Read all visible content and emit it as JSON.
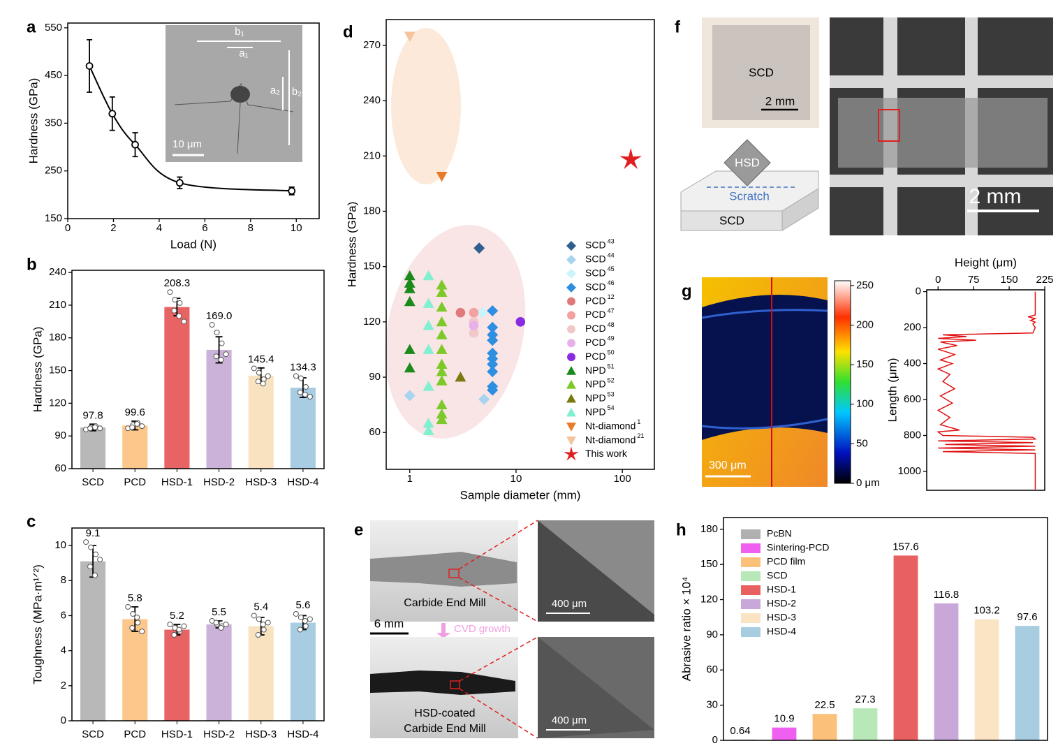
{
  "panel_labels": [
    "a",
    "b",
    "c",
    "d",
    "e",
    "f",
    "g",
    "h"
  ],
  "figures": {
    "a_inset": {
      "b1": "b₁",
      "a1": "a₁",
      "a2": "a₂",
      "b2": "b₂",
      "scale": "10 μm"
    },
    "e": {
      "top_caption": "Carbide End Mill",
      "scale": "6 mm",
      "arrow": "CVD growth",
      "bottom_caption_1": "HSD-coated",
      "bottom_caption_2": "Carbide End Mill",
      "zoom_scale_1": "400 μm",
      "zoom_scale_2": "400 μm"
    },
    "f": {
      "photo_label": "SCD",
      "photo_scale": "2 mm",
      "tip": "HSD",
      "scratch": "Scratch",
      "substrate": "SCD",
      "big_scale": "2 mm"
    },
    "g": {
      "map_scale": "300 μm"
    }
  },
  "chart_data": [
    {
      "type": "line",
      "xlabel": "Load (N)",
      "ylabel": "Hardness (GPa)",
      "x": [
        0.95,
        1.95,
        2.95,
        4.9,
        9.8
      ],
      "values": [
        470,
        370,
        305,
        225,
        208
      ],
      "errors": [
        55,
        35,
        25,
        12,
        8
      ],
      "xlim": [
        0,
        11
      ],
      "xticks": [
        0,
        2,
        4,
        6,
        8,
        10
      ],
      "ylim": [
        150,
        560
      ],
      "yticks": [
        150,
        250,
        350,
        450,
        550
      ],
      "color": "#000000"
    },
    {
      "type": "bar",
      "ylabel": "Hardness (GPa)",
      "categories": [
        "SCD",
        "PCD",
        "HSD-1",
        "HSD-2",
        "HSD-3",
        "HSD-4"
      ],
      "values": [
        97.8,
        99.6,
        208.3,
        169.0,
        145.4,
        134.3
      ],
      "value_labels": [
        "97.8",
        "99.6",
        "208.3",
        "169.0",
        "145.4",
        "134.3"
      ],
      "errors": [
        3,
        4,
        8,
        12,
        7,
        9
      ],
      "points": [
        [
          96,
          98,
          99,
          97,
          98,
          97
        ],
        [
          97,
          100,
          102,
          98,
          101,
          99
        ],
        [
          222,
          215,
          212,
          205,
          200,
          195
        ],
        [
          192,
          185,
          175,
          163,
          160,
          165
        ],
        [
          152,
          148,
          142,
          140,
          138,
          145
        ],
        [
          145,
          143,
          135,
          130,
          128,
          126
        ]
      ],
      "colors": [
        "#b8b8b8",
        "#fbc78a",
        "#e86464",
        "#cbb2d8",
        "#f8e2c0",
        "#a8cde2"
      ],
      "ylim": [
        60,
        242
      ],
      "yticks": [
        60,
        90,
        120,
        150,
        180,
        210,
        240
      ]
    },
    {
      "type": "bar",
      "ylabel": "Toughness (MPa·m¹ᐟ²)",
      "categories": [
        "SCD",
        "PCD",
        "HSD-1",
        "HSD-2",
        "HSD-3",
        "HSD-4"
      ],
      "values": [
        9.1,
        5.8,
        5.2,
        5.5,
        5.4,
        5.6
      ],
      "errors": [
        0.9,
        0.7,
        0.3,
        0.2,
        0.5,
        0.4
      ],
      "points": [
        [
          10.2,
          9.9,
          9.5,
          8.8,
          8.3,
          9.2
        ],
        [
          6.5,
          6.1,
          5.6,
          5.3,
          5.9,
          5.1
        ],
        [
          5.5,
          5.3,
          5.1,
          4.9,
          5.2,
          5.4
        ],
        [
          5.7,
          5.5,
          5.4,
          5.6,
          5.3,
          5.5
        ],
        [
          6.0,
          5.8,
          5.2,
          4.9,
          5.5,
          5.6
        ],
        [
          6.1,
          5.9,
          5.4,
          5.2,
          5.7,
          5.8
        ]
      ],
      "colors": [
        "#b8b8b8",
        "#fbc78a",
        "#e86464",
        "#cbb2d8",
        "#f8e2c0",
        "#a8cde2"
      ],
      "ylim": [
        0,
        11
      ],
      "yticks": [
        0,
        2,
        4,
        6,
        8,
        10
      ]
    },
    {
      "type": "scatter",
      "xlabel": "Sample diameter (mm)",
      "ylabel": "Hardness (GPa)",
      "xscale": "log",
      "xlim": [
        0.6,
        200
      ],
      "xticks": [
        1,
        10,
        100
      ],
      "ylim": [
        40,
        284
      ],
      "yticks": [
        60,
        90,
        120,
        150,
        180,
        210,
        240,
        270
      ],
      "series": [
        {
          "name": "SCD",
          "ref": "43",
          "color": "#2f5f8f",
          "marker": "diamond",
          "x": [
            4.5
          ],
          "values": [
            160
          ]
        },
        {
          "name": "SCD",
          "ref": "44",
          "color": "#a8d4f0",
          "marker": "diamond",
          "x": [
            1,
            5
          ],
          "values": [
            80,
            78
          ]
        },
        {
          "name": "SCD",
          "ref": "45",
          "color": "#c8f4fa",
          "marker": "diamond",
          "x": [
            4.8
          ],
          "values": [
            125
          ]
        },
        {
          "name": "SCD",
          "ref": "46",
          "color": "#2e8fe0",
          "marker": "diamond",
          "x": [
            6,
            6,
            6,
            6,
            6,
            6,
            6,
            6,
            6,
            6
          ],
          "values": [
            126,
            117,
            113,
            110,
            103,
            100,
            97,
            93,
            85,
            83
          ]
        },
        {
          "name": "PCD",
          "ref": "12",
          "color": "#e07a7a",
          "marker": "circle",
          "x": [
            3
          ],
          "values": [
            125
          ]
        },
        {
          "name": "PCD",
          "ref": "47",
          "color": "#f2a0a0",
          "marker": "circle",
          "x": [
            4
          ],
          "values": [
            125
          ]
        },
        {
          "name": "PCD",
          "ref": "48",
          "color": "#f0c8c8",
          "marker": "circle",
          "x": [
            4,
            4
          ],
          "values": [
            120,
            114
          ]
        },
        {
          "name": "PCD",
          "ref": "49",
          "color": "#e8b0e8",
          "marker": "circle",
          "x": [
            4
          ],
          "values": [
            118
          ]
        },
        {
          "name": "PCD",
          "ref": "50",
          "color": "#8a2be2",
          "marker": "circle",
          "x": [
            11
          ],
          "values": [
            120
          ]
        },
        {
          "name": "NPD",
          "ref": "51",
          "color": "#1a8a1a",
          "marker": "triangle",
          "x": [
            1,
            1,
            1,
            1,
            1,
            1
          ],
          "values": [
            145,
            141,
            138,
            131,
            105,
            95
          ]
        },
        {
          "name": "NPD",
          "ref": "52",
          "color": "#7dc92a",
          "marker": "triangle",
          "x": [
            2,
            2,
            2,
            2,
            2,
            2,
            2,
            2,
            2,
            2,
            2,
            2
          ],
          "values": [
            140,
            136,
            128,
            120,
            113,
            105,
            97,
            93,
            88,
            75,
            70,
            67
          ]
        },
        {
          "name": "NPD",
          "ref": "53",
          "color": "#7a7a10",
          "marker": "triangle",
          "x": [
            3
          ],
          "values": [
            90
          ]
        },
        {
          "name": "NPD",
          "ref": "54",
          "color": "#7ff0d0",
          "marker": "triangle",
          "x": [
            1.5,
            1.5,
            1.5,
            1.5,
            1.5,
            1.5,
            1.5
          ],
          "values": [
            145,
            130,
            118,
            105,
            85,
            65,
            61
          ]
        },
        {
          "name": "Nt-diamond",
          "ref": "1",
          "color": "#e87b2a",
          "marker": "triangle-down",
          "x": [
            2
          ],
          "values": [
            199
          ]
        },
        {
          "name": "Nt-diamond",
          "ref": "21",
          "color": "#f5c49a",
          "marker": "triangle-down",
          "x": [
            1
          ],
          "values": [
            275
          ]
        },
        {
          "name": "This work",
          "color": "#e02020",
          "marker": "star",
          "x": [
            120
          ],
          "values": [
            208
          ]
        }
      ]
    },
    {
      "type": "heatmap",
      "clim": [
        0,
        256
      ],
      "cticks": [
        {
          "value": 0,
          "label": "0 μm"
        },
        50,
        100,
        150,
        200,
        250
      ]
    },
    {
      "type": "line",
      "xlabel": "Height (μm)",
      "ylabel": "Length (μm)",
      "x_axis": "top",
      "y_inverted": true,
      "color": "#e01010",
      "xlim": [
        -24,
        225
      ],
      "xticks": [
        0,
        75,
        150,
        225
      ],
      "ylim": [
        -10,
        1105
      ],
      "yticks": [
        0,
        200,
        400,
        600,
        800,
        1000
      ],
      "y": [
        0,
        130,
        140,
        150,
        160,
        170,
        180,
        200,
        230,
        240,
        250,
        260,
        270,
        280,
        300,
        320,
        350,
        380,
        400,
        430,
        460,
        500,
        540,
        580,
        620,
        660,
        700,
        740,
        770,
        780,
        800,
        810,
        820,
        830,
        840,
        850,
        860,
        870,
        880,
        890,
        900,
        950,
        1100
      ],
      "values": [
        205,
        205,
        190,
        205,
        195,
        205,
        200,
        205,
        200,
        10,
        60,
        0,
        80,
        5,
        40,
        0,
        35,
        5,
        30,
        0,
        25,
        10,
        35,
        5,
        30,
        0,
        25,
        5,
        45,
        0,
        10,
        200,
        205,
        0,
        200,
        15,
        205,
        0,
        205,
        10,
        205,
        205,
        205
      ]
    },
    {
      "type": "bar",
      "ylabel": "Abrasive ratio × 10⁴",
      "legend": "upper left",
      "categories": [
        "PcBN",
        "Sintering-PCD",
        "PCD film",
        "SCD",
        "HSD-1",
        "HSD-2",
        "HSD-3",
        "HSD-4"
      ],
      "values": [
        0.64,
        10.9,
        22.5,
        27.3,
        157.6,
        116.8,
        103.2,
        97.6
      ],
      "colors": [
        "#b0b0b0",
        "#f060f0",
        "#fbc07a",
        "#b8e8b8",
        "#e86060",
        "#c8a8d8",
        "#fbe4c4",
        "#a8cce0"
      ],
      "ylim": [
        0,
        190
      ],
      "yticks": [
        0,
        30,
        60,
        90,
        120,
        150,
        180
      ]
    }
  ]
}
